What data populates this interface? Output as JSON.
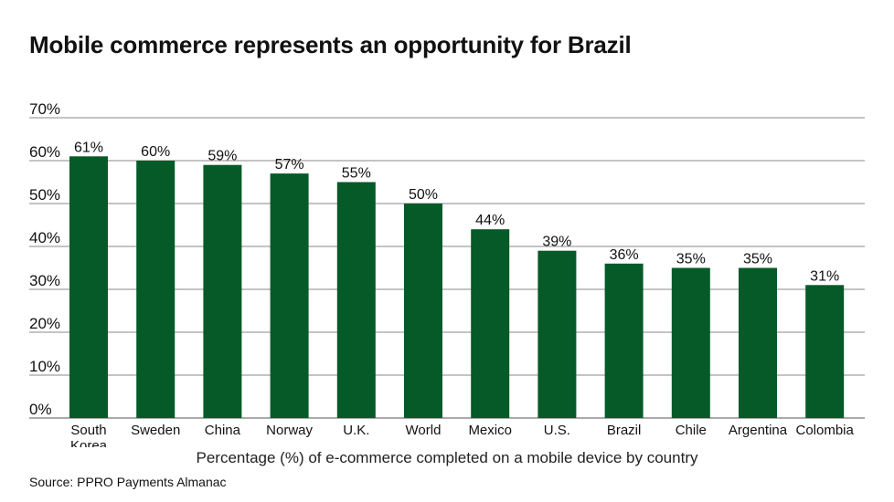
{
  "title": "Mobile commerce represents an opportunity for Brazil",
  "source": "Source: PPRO Payments Almanac",
  "colors": {
    "bar": "#055a28",
    "grid": "#8a8a8a",
    "axis": "#555555",
    "text": "#111111"
  },
  "chart_data": {
    "type": "bar",
    "title": "Mobile commerce represents an opportunity for Brazil",
    "xlabel": "Percentage (%) of e-commerce completed on a mobile device by country",
    "ylabel": "",
    "categories": [
      "South Korea",
      "Sweden",
      "China",
      "Norway",
      "U.K.",
      "World",
      "Mexico",
      "U.S.",
      "Brazil",
      "Chile",
      "Argentina",
      "Colombia"
    ],
    "category_lines": [
      [
        "South",
        "Korea"
      ],
      [
        "Sweden"
      ],
      [
        "China"
      ],
      [
        "Norway"
      ],
      [
        "U.K."
      ],
      [
        "World"
      ],
      [
        "Mexico"
      ],
      [
        "U.S."
      ],
      [
        "Brazil"
      ],
      [
        "Chile"
      ],
      [
        "Argentina"
      ],
      [
        "Colombia"
      ]
    ],
    "values": [
      61,
      60,
      59,
      57,
      55,
      50,
      44,
      39,
      36,
      35,
      35,
      31
    ],
    "value_labels": [
      "61%",
      "60%",
      "59%",
      "57%",
      "55%",
      "50%",
      "44%",
      "39%",
      "36%",
      "35%",
      "35%",
      "31%"
    ],
    "ylim": [
      0,
      70
    ],
    "yticks": [
      0,
      10,
      20,
      30,
      40,
      50,
      60,
      70
    ],
    "ytick_labels": [
      "0%",
      "10%",
      "20%",
      "30%",
      "40%",
      "50%",
      "60%",
      "70%"
    ],
    "grid": true,
    "legend": "none"
  }
}
